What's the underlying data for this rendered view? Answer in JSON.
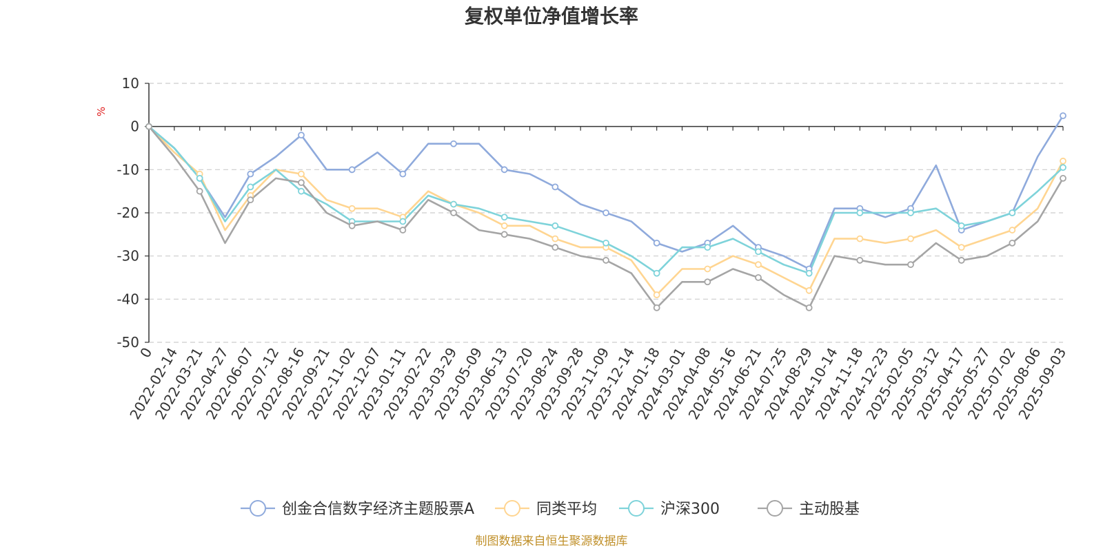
{
  "chart_data": {
    "type": "line",
    "title": "复权单位净值增长率",
    "ylabel": "%",
    "ylim": [
      -50,
      10
    ],
    "yticks": [
      "10",
      "0",
      "-10",
      "-20",
      "-30",
      "-40",
      "-50"
    ],
    "grid": true,
    "legend_position": "bottom",
    "source": "制图数据来自恒生聚源数据库",
    "x": [
      "0",
      "2022-02-14",
      "2022-03-21",
      "2022-04-27",
      "2022-06-07",
      "2022-07-12",
      "2022-08-16",
      "2022-09-21",
      "2022-11-02",
      "2022-12-07",
      "2023-01-11",
      "2023-02-22",
      "2023-03-29",
      "2023-05-09",
      "2023-06-13",
      "2023-07-20",
      "2023-08-24",
      "2023-09-28",
      "2023-11-09",
      "2023-12-14",
      "2024-01-18",
      "2024-03-01",
      "2024-04-08",
      "2024-05-16",
      "2024-06-21",
      "2024-07-25",
      "2024-08-29",
      "2024-10-14",
      "2024-11-18",
      "2024-12-23",
      "2025-02-05",
      "2025-03-12",
      "2025-04-17",
      "2025-05-27",
      "2025-07-02",
      "2025-08-06",
      "2025-09-03"
    ],
    "series": [
      {
        "name": "创金合信数字经济主题股票A",
        "color": "#8faadc",
        "values": [
          0,
          -5,
          -12,
          -21,
          -11,
          -7,
          -2,
          -10,
          -10,
          -6,
          -11,
          -4,
          -4,
          -4,
          -10,
          -11,
          -14,
          -18,
          -20,
          -22,
          -27,
          -29,
          -27,
          -23,
          -28,
          -30,
          -33,
          -19,
          -19,
          -21,
          -19,
          -9,
          -24,
          -22,
          -20,
          -7,
          2.5
        ]
      },
      {
        "name": "同类平均",
        "color": "#ffd591",
        "values": [
          0,
          -6,
          -11,
          -24,
          -16,
          -10,
          -11,
          -17,
          -19,
          -19,
          -21,
          -15,
          -18,
          -20,
          -23,
          -23,
          -26,
          -28,
          -28,
          -31,
          -39,
          -33,
          -33,
          -30,
          -32,
          -35,
          -38,
          -26,
          -26,
          -27,
          -26,
          -24,
          -28,
          -26,
          -24,
          -19,
          -8
        ]
      },
      {
        "name": "沪深300",
        "color": "#7ed3da",
        "values": [
          0,
          -5,
          -12,
          -22,
          -14,
          -10,
          -15,
          -18,
          -22,
          -22,
          -22,
          -16,
          -18,
          -19,
          -21,
          -22,
          -23,
          -25,
          -27,
          -30,
          -34,
          -28,
          -28,
          -26,
          -29,
          -32,
          -34,
          -20,
          -20,
          -20,
          -20,
          -19,
          -23,
          -22,
          -20,
          -15,
          -9.5
        ]
      },
      {
        "name": "主动股基",
        "color": "#a5a5a5",
        "values": [
          0,
          -7,
          -15,
          -27,
          -17,
          -12,
          -13,
          -20,
          -23,
          -22,
          -24,
          -17,
          -20,
          -24,
          -25,
          -26,
          -28,
          -30,
          -31,
          -34,
          -42,
          -36,
          -36,
          -33,
          -35,
          -39,
          -42,
          -30,
          -31,
          -32,
          -32,
          -27,
          -31,
          -30,
          -27,
          -22,
          -12
        ]
      }
    ]
  }
}
